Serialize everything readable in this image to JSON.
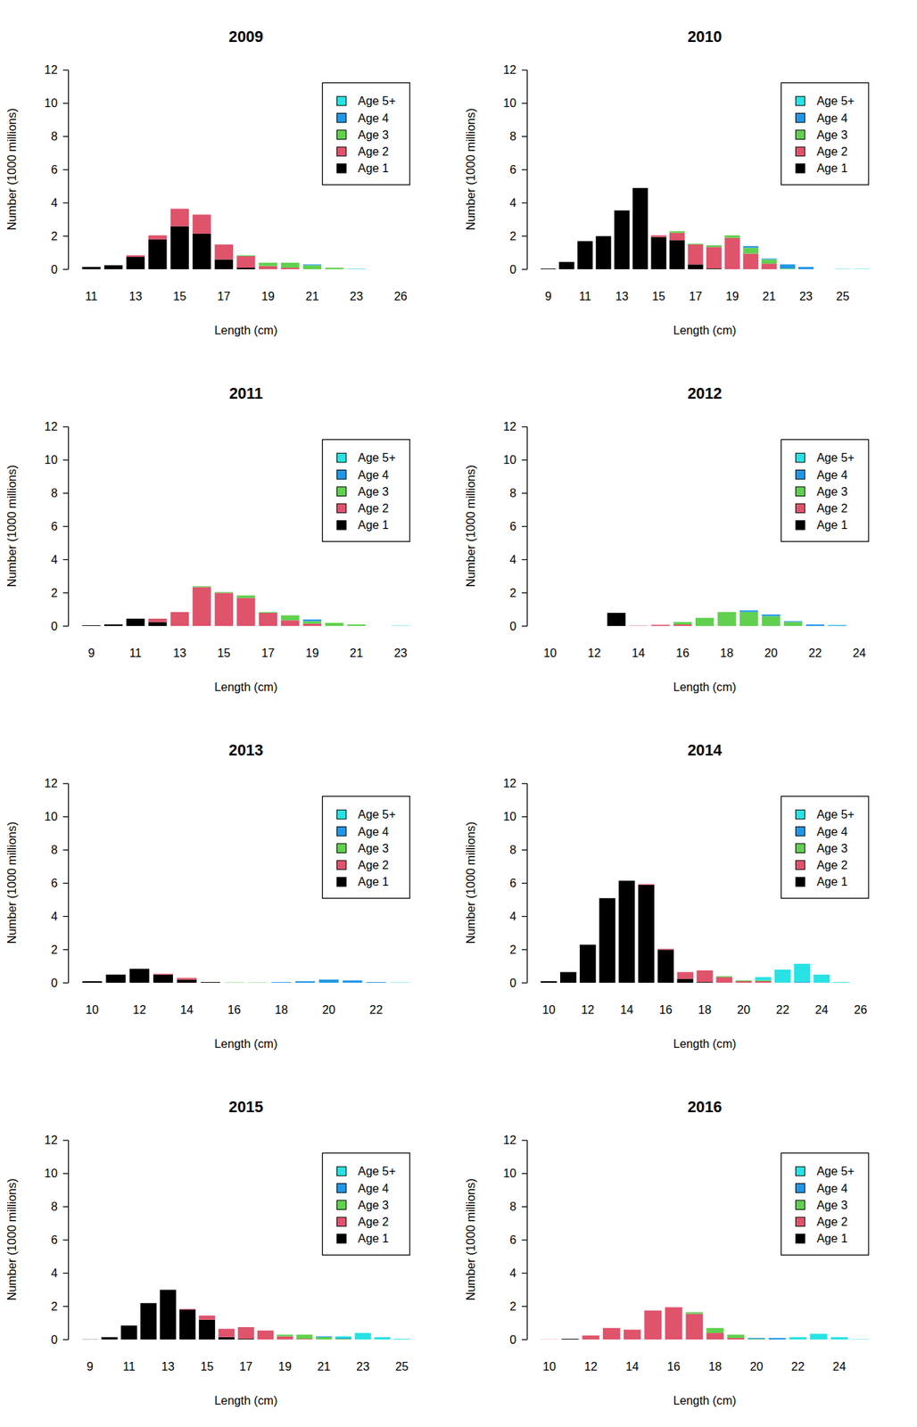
{
  "chart_data": [
    {
      "type": "bar",
      "title": "2009",
      "x_label": "Length (cm)",
      "y_label": "Number (1000 millions)",
      "stacked": true,
      "legend": "top-right",
      "ylim": [
        0,
        12
      ],
      "yticks": [
        0,
        2,
        4,
        6,
        8,
        10,
        12
      ],
      "categories": [
        11,
        null,
        13,
        null,
        15,
        null,
        17,
        null,
        19,
        null,
        21,
        null,
        23,
        null,
        26
      ],
      "series": [
        {
          "name": "Age 1",
          "color": "#000000",
          "values": [
            0.15,
            0.25,
            0.75,
            1.8,
            2.6,
            2.15,
            0.6,
            0.1,
            0,
            0,
            0,
            0,
            0,
            0,
            0
          ]
        },
        {
          "name": "Age 2",
          "color": "#DF536B",
          "values": [
            0,
            0,
            0.1,
            0.25,
            1.05,
            1.15,
            0.9,
            0.7,
            0.2,
            0.1,
            0,
            0,
            0,
            0,
            0
          ]
        },
        {
          "name": "Age 3",
          "color": "#61D04F",
          "values": [
            0,
            0,
            0,
            0,
            0,
            0,
            0,
            0.05,
            0.2,
            0.3,
            0.25,
            0.1,
            0,
            0,
            0
          ]
        },
        {
          "name": "Age 4",
          "color": "#2297E6",
          "values": [
            0,
            0,
            0,
            0,
            0,
            0,
            0,
            0,
            0,
            0,
            0.05,
            0,
            0.02,
            0,
            0
          ]
        },
        {
          "name": "Age 5+",
          "color": "#28E2E5",
          "values": [
            0,
            0,
            0,
            0,
            0,
            0,
            0,
            0,
            0,
            0,
            0,
            0,
            0.02,
            0,
            0
          ]
        }
      ]
    },
    {
      "type": "bar",
      "title": "2010",
      "x_label": "Length (cm)",
      "y_label": "Number (1000 millions)",
      "stacked": true,
      "legend": "top-right",
      "ylim": [
        0,
        12
      ],
      "yticks": [
        0,
        2,
        4,
        6,
        8,
        10,
        12
      ],
      "categories": [
        9,
        null,
        11,
        null,
        13,
        null,
        15,
        null,
        17,
        null,
        19,
        null,
        21,
        null,
        23,
        null,
        25,
        null
      ],
      "series": [
        {
          "name": "Age 1",
          "color": "#000000",
          "values": [
            0.05,
            0.45,
            1.7,
            2.0,
            3.55,
            4.9,
            1.95,
            1.75,
            0.3,
            0.05,
            0,
            0,
            0,
            0,
            0,
            0,
            0,
            0
          ]
        },
        {
          "name": "Age 2",
          "color": "#DF536B",
          "values": [
            0,
            0,
            0,
            0,
            0,
            0,
            0.1,
            0.45,
            1.2,
            1.3,
            1.9,
            0.95,
            0.35,
            0,
            0,
            0,
            0,
            0
          ]
        },
        {
          "name": "Age 3",
          "color": "#61D04F",
          "values": [
            0,
            0,
            0,
            0,
            0,
            0,
            0,
            0.1,
            0.05,
            0.1,
            0.15,
            0.35,
            0.25,
            0.05,
            0,
            0,
            0,
            0
          ]
        },
        {
          "name": "Age 4",
          "color": "#2297E6",
          "values": [
            0,
            0,
            0,
            0,
            0,
            0,
            0,
            0,
            0,
            0,
            0,
            0.1,
            0.05,
            0.25,
            0.15,
            0,
            0,
            0
          ]
        },
        {
          "name": "Age 5+",
          "color": "#28E2E5",
          "values": [
            0,
            0,
            0,
            0,
            0,
            0,
            0,
            0,
            0,
            0,
            0,
            0,
            0,
            0,
            0,
            0,
            0.03,
            0.03
          ]
        }
      ]
    },
    {
      "type": "bar",
      "title": "2011",
      "x_label": "Length (cm)",
      "y_label": "Number (1000 millions)",
      "stacked": true,
      "legend": "top-right",
      "ylim": [
        0,
        12
      ],
      "yticks": [
        0,
        2,
        4,
        6,
        8,
        10,
        12
      ],
      "categories": [
        9,
        null,
        11,
        null,
        13,
        null,
        15,
        null,
        17,
        null,
        19,
        null,
        21,
        null,
        23
      ],
      "series": [
        {
          "name": "Age 1",
          "color": "#000000",
          "values": [
            0.05,
            0.1,
            0.45,
            0.25,
            0,
            0,
            0,
            0,
            0,
            0,
            0,
            0,
            0,
            0,
            0
          ]
        },
        {
          "name": "Age 2",
          "color": "#DF536B",
          "values": [
            0,
            0,
            0,
            0.2,
            0.85,
            2.35,
            2.0,
            1.7,
            0.8,
            0.35,
            0.15,
            0,
            0,
            0,
            0
          ]
        },
        {
          "name": "Age 3",
          "color": "#61D04F",
          "values": [
            0,
            0,
            0,
            0,
            0,
            0.05,
            0.05,
            0.15,
            0.05,
            0.3,
            0.15,
            0.2,
            0.1,
            0,
            0
          ]
        },
        {
          "name": "Age 4",
          "color": "#2297E6",
          "values": [
            0,
            0,
            0,
            0,
            0,
            0,
            0,
            0,
            0,
            0,
            0.1,
            0,
            0,
            0,
            0
          ]
        },
        {
          "name": "Age 5+",
          "color": "#28E2E5",
          "values": [
            0,
            0,
            0,
            0,
            0,
            0,
            0,
            0,
            0,
            0,
            0,
            0,
            0,
            0,
            0.03
          ]
        }
      ]
    },
    {
      "type": "bar",
      "title": "2012",
      "x_label": "Length (cm)",
      "y_label": "Number (1000 millions)",
      "stacked": true,
      "legend": "top-right",
      "ylim": [
        0,
        12
      ],
      "yticks": [
        0,
        2,
        4,
        6,
        8,
        10,
        12
      ],
      "categories": [
        10,
        null,
        12,
        null,
        14,
        null,
        16,
        null,
        18,
        null,
        20,
        null,
        22,
        null,
        24
      ],
      "series": [
        {
          "name": "Age 1",
          "color": "#000000",
          "values": [
            0,
            0,
            0,
            0.8,
            0,
            0,
            0,
            0,
            0,
            0,
            0,
            0,
            0,
            0,
            0
          ]
        },
        {
          "name": "Age 2",
          "color": "#DF536B",
          "values": [
            0,
            0,
            0,
            0,
            0.03,
            0.08,
            0.1,
            0,
            0,
            0,
            0,
            0,
            0,
            0,
            0
          ]
        },
        {
          "name": "Age 3",
          "color": "#61D04F",
          "values": [
            0,
            0,
            0,
            0,
            0,
            0,
            0.15,
            0.5,
            0.85,
            0.85,
            0.6,
            0.25,
            0,
            0,
            0
          ]
        },
        {
          "name": "Age 4",
          "color": "#2297E6",
          "values": [
            0,
            0,
            0,
            0,
            0,
            0,
            0,
            0,
            0,
            0.1,
            0.1,
            0.05,
            0.1,
            0.05,
            0
          ]
        },
        {
          "name": "Age 5+",
          "color": "#28E2E5",
          "values": [
            0,
            0,
            0,
            0,
            0,
            0,
            0,
            0,
            0,
            0,
            0,
            0,
            0,
            0.02,
            0
          ]
        }
      ]
    },
    {
      "type": "bar",
      "title": "2013",
      "x_label": "Length (cm)",
      "y_label": "Number (1000 millions)",
      "stacked": true,
      "legend": "top-right",
      "ylim": [
        0,
        12
      ],
      "yticks": [
        0,
        2,
        4,
        6,
        8,
        10,
        12
      ],
      "categories": [
        10,
        null,
        12,
        null,
        14,
        null,
        16,
        null,
        18,
        null,
        20,
        null,
        22,
        null
      ],
      "series": [
        {
          "name": "Age 1",
          "color": "#000000",
          "values": [
            0.1,
            0.5,
            0.85,
            0.5,
            0.2,
            0.05,
            0,
            0,
            0,
            0,
            0,
            0,
            0,
            0
          ]
        },
        {
          "name": "Age 2",
          "color": "#DF536B",
          "values": [
            0,
            0,
            0,
            0.05,
            0.1,
            0,
            0,
            0,
            0,
            0,
            0,
            0,
            0,
            0
          ]
        },
        {
          "name": "Age 3",
          "color": "#61D04F",
          "values": [
            0,
            0,
            0,
            0,
            0,
            0,
            0.03,
            0.03,
            0,
            0,
            0,
            0,
            0,
            0
          ]
        },
        {
          "name": "Age 4",
          "color": "#2297E6",
          "values": [
            0,
            0,
            0,
            0,
            0,
            0,
            0,
            0,
            0.05,
            0.1,
            0.2,
            0.15,
            0.05,
            0
          ]
        },
        {
          "name": "Age 5+",
          "color": "#28E2E5",
          "values": [
            0,
            0,
            0,
            0,
            0,
            0,
            0,
            0,
            0,
            0,
            0,
            0,
            0,
            0.03
          ]
        }
      ]
    },
    {
      "type": "bar",
      "title": "2014",
      "x_label": "Length (cm)",
      "y_label": "Number (1000 millions)",
      "stacked": true,
      "legend": "top-right",
      "ylim": [
        0,
        12
      ],
      "yticks": [
        0,
        2,
        4,
        6,
        8,
        10,
        12
      ],
      "categories": [
        10,
        null,
        12,
        null,
        14,
        null,
        16,
        null,
        18,
        null,
        20,
        null,
        22,
        null,
        24,
        null,
        26
      ],
      "series": [
        {
          "name": "Age 1",
          "color": "#000000",
          "values": [
            0.1,
            0.65,
            2.3,
            5.1,
            6.15,
            5.9,
            2.0,
            0.25,
            0.05,
            0,
            0,
            0,
            0,
            0,
            0,
            0,
            0
          ]
        },
        {
          "name": "Age 2",
          "color": "#DF536B",
          "values": [
            0,
            0,
            0,
            0,
            0,
            0.05,
            0.05,
            0.4,
            0.7,
            0.35,
            0.1,
            0.1,
            0,
            0,
            0,
            0,
            0
          ]
        },
        {
          "name": "Age 3",
          "color": "#61D04F",
          "values": [
            0,
            0,
            0,
            0,
            0,
            0,
            0,
            0,
            0,
            0.05,
            0.05,
            0.05,
            0,
            0,
            0,
            0,
            0
          ]
        },
        {
          "name": "Age 4",
          "color": "#2297E6",
          "values": [
            0,
            0,
            0,
            0,
            0,
            0,
            0,
            0,
            0,
            0,
            0,
            0,
            0,
            0.05,
            0,
            0,
            0
          ]
        },
        {
          "name": "Age 5+",
          "color": "#28E2E5",
          "values": [
            0,
            0,
            0,
            0,
            0,
            0,
            0,
            0,
            0,
            0,
            0,
            0.2,
            0.8,
            1.1,
            0.5,
            0.05,
            0
          ]
        }
      ]
    },
    {
      "type": "bar",
      "title": "2015",
      "x_label": "Length (cm)",
      "y_label": "Number (1000 millions)",
      "stacked": true,
      "legend": "top-right",
      "ylim": [
        0,
        12
      ],
      "yticks": [
        0,
        2,
        4,
        6,
        8,
        10,
        12
      ],
      "categories": [
        9,
        null,
        11,
        null,
        13,
        null,
        15,
        null,
        17,
        null,
        19,
        null,
        21,
        null,
        23,
        null,
        25
      ],
      "series": [
        {
          "name": "Age 1",
          "color": "#000000",
          "values": [
            0.02,
            0.15,
            0.85,
            2.2,
            3.0,
            1.8,
            1.2,
            0.15,
            0.05,
            0,
            0,
            0,
            0,
            0,
            0,
            0,
            0
          ]
        },
        {
          "name": "Age 2",
          "color": "#DF536B",
          "values": [
            0,
            0,
            0,
            0,
            0,
            0.05,
            0.25,
            0.5,
            0.7,
            0.55,
            0.2,
            0.05,
            0,
            0,
            0,
            0,
            0
          ]
        },
        {
          "name": "Age 3",
          "color": "#61D04F",
          "values": [
            0,
            0,
            0,
            0,
            0,
            0,
            0,
            0,
            0,
            0,
            0.1,
            0.25,
            0.15,
            0.05,
            0,
            0,
            0
          ]
        },
        {
          "name": "Age 4",
          "color": "#2297E6",
          "values": [
            0,
            0,
            0,
            0,
            0,
            0,
            0,
            0,
            0,
            0,
            0,
            0,
            0.05,
            0.05,
            0,
            0,
            0
          ]
        },
        {
          "name": "Age 5+",
          "color": "#28E2E5",
          "values": [
            0,
            0,
            0,
            0,
            0,
            0,
            0,
            0,
            0,
            0,
            0,
            0,
            0,
            0.1,
            0.4,
            0.15,
            0.05
          ]
        }
      ]
    },
    {
      "type": "bar",
      "title": "2016",
      "x_label": "Length (cm)",
      "y_label": "Number (1000 millions)",
      "stacked": true,
      "legend": "top-right",
      "ylim": [
        0,
        12
      ],
      "yticks": [
        0,
        2,
        4,
        6,
        8,
        10,
        12
      ],
      "categories": [
        10,
        null,
        12,
        null,
        14,
        null,
        16,
        null,
        18,
        null,
        20,
        null,
        22,
        null,
        24,
        null
      ],
      "series": [
        {
          "name": "Age 1",
          "color": "#000000",
          "values": [
            0,
            0.05,
            0,
            0,
            0,
            0,
            0,
            0,
            0,
            0,
            0,
            0,
            0,
            0,
            0,
            0
          ]
        },
        {
          "name": "Age 2",
          "color": "#DF536B",
          "values": [
            0.02,
            0,
            0.25,
            0.7,
            0.6,
            1.75,
            1.95,
            1.55,
            0.4,
            0.1,
            0,
            0,
            0,
            0,
            0,
            0
          ]
        },
        {
          "name": "Age 3",
          "color": "#61D04F",
          "values": [
            0,
            0,
            0,
            0,
            0,
            0,
            0,
            0.1,
            0.3,
            0.2,
            0.05,
            0,
            0,
            0,
            0,
            0
          ]
        },
        {
          "name": "Age 4",
          "color": "#2297E6",
          "values": [
            0,
            0,
            0,
            0,
            0,
            0,
            0,
            0,
            0,
            0,
            0.05,
            0.1,
            0,
            0,
            0,
            0
          ]
        },
        {
          "name": "Age 5+",
          "color": "#28E2E5",
          "values": [
            0,
            0,
            0,
            0,
            0,
            0,
            0,
            0,
            0,
            0,
            0,
            0,
            0.15,
            0.35,
            0.15,
            0.03
          ]
        }
      ]
    }
  ]
}
